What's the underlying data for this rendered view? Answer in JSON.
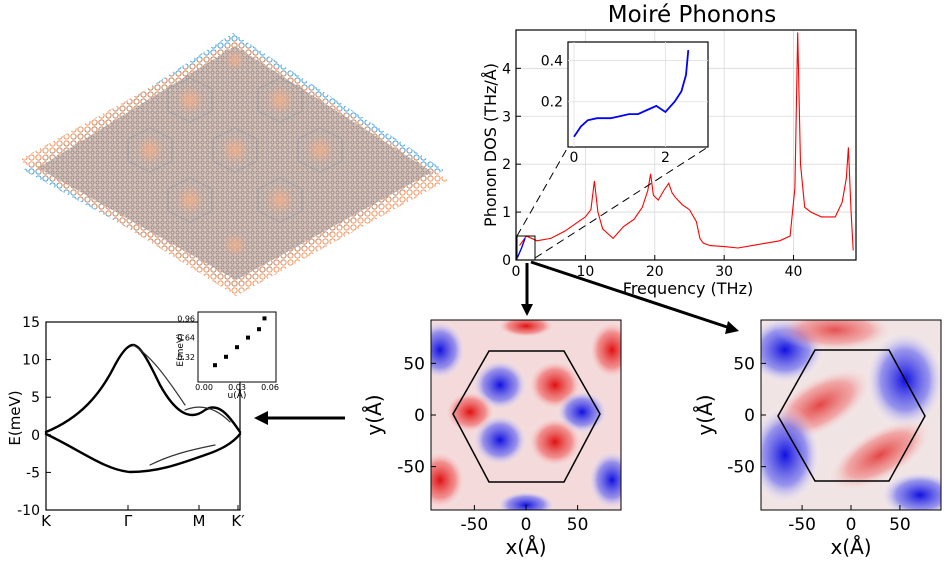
{
  "chart_data": [
    {
      "type": "line",
      "id": "dos",
      "title": "Moiré Phonons",
      "xlabel": "Frequency (THz)",
      "ylabel": "Phonon DOS (THz/Å)",
      "xlim": [
        0,
        49
      ],
      "ylim": [
        0,
        4.8
      ],
      "xticks": [
        "0",
        "10",
        "20",
        "30",
        "40"
      ],
      "yticks": [
        "0",
        "1",
        "2",
        "3",
        "4"
      ],
      "grid": true,
      "series": [
        {
          "color": "#ff0000",
          "x": [
            0.5,
            1.5,
            3,
            5,
            7,
            9,
            10,
            10.8,
            11.3,
            11.8,
            12.5,
            14,
            15.5,
            17,
            18.2,
            19,
            19.4,
            19.8,
            20.5,
            21.3,
            22,
            22.5,
            23,
            24,
            25,
            26,
            26.5,
            27,
            28,
            30,
            32,
            34,
            36,
            38,
            39.5,
            40.2,
            40.6,
            41,
            41.6,
            42.5,
            44,
            46,
            47,
            47.6,
            47.9,
            48.3,
            48.6
          ],
          "y": [
            0.3,
            0.5,
            0.4,
            0.45,
            0.6,
            0.8,
            0.9,
            1.05,
            1.65,
            1.0,
            0.65,
            0.45,
            0.7,
            0.85,
            1.1,
            1.45,
            1.8,
            1.35,
            1.25,
            1.45,
            1.6,
            1.4,
            1.3,
            1.15,
            1.05,
            0.8,
            0.45,
            0.35,
            0.3,
            0.28,
            0.25,
            0.3,
            0.35,
            0.4,
            0.5,
            1.5,
            4.75,
            2.0,
            1.1,
            1.0,
            0.9,
            0.9,
            1.2,
            1.7,
            2.35,
            1.0,
            0.2
          ]
        }
      ]
    },
    {
      "type": "line",
      "id": "dos-inset",
      "xlim": [
        0,
        2.8
      ],
      "ylim": [
        0.0,
        0.47
      ],
      "xticks": [
        "0",
        "2"
      ],
      "yticks": [
        "0.2",
        "0.4"
      ],
      "series": [
        {
          "color": "#0000ff",
          "x": [
            0,
            0.15,
            0.3,
            0.5,
            0.8,
            1.0,
            1.2,
            1.4,
            1.6,
            1.8,
            2.0,
            2.2,
            2.35,
            2.45,
            2.5
          ],
          "y": [
            0.03,
            0.08,
            0.11,
            0.12,
            0.12,
            0.13,
            0.14,
            0.14,
            0.16,
            0.18,
            0.15,
            0.2,
            0.25,
            0.33,
            0.45
          ]
        }
      ]
    },
    {
      "type": "line",
      "id": "bands",
      "ylabel": "E(meV)",
      "xticks": [
        "K",
        "Γ",
        "M",
        "K′"
      ],
      "yticks": [
        "15",
        "10",
        "5",
        "0",
        "-5",
        "-10"
      ],
      "ylim": [
        -10,
        15
      ]
    },
    {
      "type": "scatter",
      "id": "bands-inset",
      "xlabel": "u(Å)",
      "ylabel": "E(meV)",
      "xticks": [
        "0.00",
        "0.03",
        "0.06"
      ],
      "yticks": [
        "0.96",
        "0.64",
        "0.32"
      ],
      "x": [
        0.01,
        0.02,
        0.03,
        0.04,
        0.05,
        0.055
      ],
      "y": [
        0.18,
        0.32,
        0.48,
        0.64,
        0.78,
        0.96
      ]
    },
    {
      "type": "heatmap",
      "id": "mode-a",
      "xlabel": "x(Å)",
      "ylabel": "y(Å)",
      "xticks": [
        "-50",
        "0",
        "50"
      ],
      "yticks": [
        "50",
        "0",
        "-50"
      ]
    },
    {
      "type": "heatmap",
      "id": "mode-b",
      "xlabel": "x(Å)",
      "ylabel": "y(Å)",
      "xticks": [
        "-50",
        "0",
        "50"
      ],
      "yticks": [
        "50",
        "0",
        "-50"
      ]
    }
  ]
}
